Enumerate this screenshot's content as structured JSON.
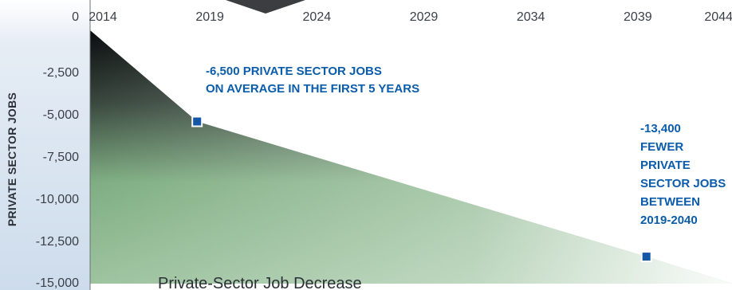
{
  "chart_data": {
    "type": "area",
    "title": "Private-Sector Job Decrease",
    "ylabel": "PRIVATE SECTOR JOBS",
    "xlabel": "",
    "x_ticks": [
      "2014",
      "2019",
      "2024",
      "2029",
      "2034",
      "2039",
      "2044"
    ],
    "xlim": [
      2014,
      2044
    ],
    "y_ticks": [
      "0",
      "-2,500",
      "-5,000",
      "-7,500",
      "-10,000",
      "-12,500",
      "-15,000"
    ],
    "ylim": [
      -15000,
      0
    ],
    "grid": false,
    "series": [
      {
        "values": [
          {
            "x": 2014,
            "y": 0
          },
          {
            "x": 2019,
            "y": -5400
          },
          {
            "x": 2040,
            "y": -13400
          },
          {
            "x": 2044,
            "y": -15000
          }
        ]
      }
    ],
    "markers": [
      {
        "x": 2019,
        "y": -5400
      },
      {
        "x": 2040,
        "y": -13400
      }
    ],
    "annotations": [
      {
        "lines": [
          "-6,500 PRIVATE SECTOR JOBS",
          "ON AVERAGE IN THE FIRST 5 YEARS"
        ]
      },
      {
        "lines": [
          "-13,400",
          "FEWER",
          "PRIVATE",
          "SECTOR JOBS",
          "BETWEEN",
          "2019-2040"
        ]
      }
    ],
    "colors": {
      "area_top": "#0a0c0e",
      "area_bottom": "#9dc39f",
      "marker": "#1557a6",
      "annotation_text": "#0b5cab",
      "left_panel": "#d6e3f0"
    }
  }
}
